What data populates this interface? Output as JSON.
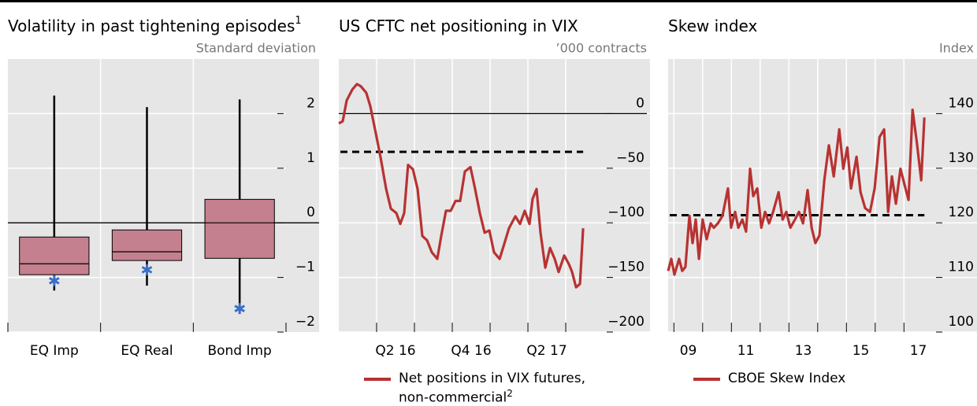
{
  "chart_data": [
    {
      "type": "box",
      "title": "Volatility in past tightening episodes",
      "title_note": "1",
      "y_label": "Standard deviation",
      "categories": [
        "EQ Imp",
        "EQ Real",
        "Bond Imp"
      ],
      "series": [
        {
          "color": "#c4808e",
          "marker_color": "#3a6fc4",
          "min": [
            -1.24,
            -1.15,
            -1.6
          ],
          "q1": [
            -0.95,
            -0.69,
            -0.65
          ],
          "median": [
            -0.75,
            -0.53,
            0
          ],
          "q3": [
            -0.26,
            -0.13,
            0.43
          ],
          "max": [
            2.33,
            2.12,
            2.26
          ],
          "marker": [
            -1.06,
            -0.86,
            -1.57
          ]
        }
      ],
      "ylim": [
        -2,
        3
      ],
      "yticks": [
        2,
        1,
        0,
        {
          "value": -1,
          "label": "−1"
        },
        {
          "value": -2,
          "label": "−2"
        }
      ],
      "grid": true,
      "zero_line": true
    },
    {
      "type": "line",
      "title": "US CFTC net positioning in VIX",
      "y_label": "’000 contracts",
      "legend_note": "2",
      "x": [
        2016.0,
        2016.026,
        2016.052,
        2016.089,
        2016.12,
        2016.146,
        2016.182,
        2016.208,
        2016.245,
        2016.276,
        2016.313,
        2016.344,
        2016.38,
        2016.406,
        2016.432,
        2016.458,
        2016.49,
        2016.521,
        2016.552,
        2016.583,
        2016.615,
        2016.651,
        2016.677,
        2016.708,
        2016.74,
        2016.771,
        2016.802,
        2016.833,
        2016.87,
        2016.901,
        2016.932,
        2016.964,
        2016.995,
        2017.026,
        2017.063,
        2017.094,
        2017.125,
        2017.167,
        2017.198,
        2017.229,
        2017.26,
        2017.281,
        2017.307,
        2017.333,
        2017.365,
        2017.396,
        2017.427,
        2017.453,
        2017.49,
        2017.521,
        2017.542,
        2017.568,
        2017.594,
        2017.615
      ],
      "series": [
        {
          "name": "Net positions in VIX futures, non-commercial",
          "color": "#b83232",
          "values": [
            -9,
            -7,
            12,
            22,
            27,
            25,
            19,
            7,
            -18,
            -40,
            -69,
            -87,
            -91,
            -101,
            -91,
            -47,
            -51,
            -69,
            -112,
            -116,
            -127,
            -133,
            -112,
            -89,
            -89,
            -80,
            -80,
            -53,
            -49,
            -69,
            -91,
            -109,
            -107,
            -127,
            -133,
            -119,
            -105,
            -94,
            -101,
            -89,
            -101,
            -78,
            -69,
            -109,
            -141,
            -123,
            -133,
            -145,
            -130,
            -138,
            -145,
            -159,
            -156,
            -105
          ]
        }
      ],
      "xlim": [
        2016.0,
        2018.057
      ],
      "xticks": [
        {
          "value": 2016.375,
          "label": "Q2 16"
        },
        {
          "value": 2016.875,
          "label": "Q4 16"
        },
        {
          "value": 2017.375,
          "label": "Q2 17"
        }
      ],
      "xgrid": [
        2016.25,
        2016.5,
        2016.75,
        2017.0,
        2017.25,
        2017.5
      ],
      "ylim": [
        -200,
        50
      ],
      "yticks": [
        0,
        {
          "value": -50,
          "label": "−50"
        },
        {
          "value": -100,
          "label": "−100"
        },
        {
          "value": -150,
          "label": "−150"
        },
        {
          "value": -200,
          "label": "−200"
        }
      ],
      "grid": true,
      "zero_line": true,
      "reference_line": -35
    },
    {
      "type": "line",
      "title": "Skew index",
      "y_label": "Index",
      "x": [
        2008.8,
        2008.91,
        2009.02,
        2009.18,
        2009.29,
        2009.4,
        2009.54,
        2009.65,
        2009.76,
        2009.87,
        2010.0,
        2010.14,
        2010.28,
        2010.39,
        2010.53,
        2010.69,
        2010.88,
        2010.99,
        2011.13,
        2011.24,
        2011.38,
        2011.51,
        2011.65,
        2011.76,
        2011.9,
        2012.04,
        2012.17,
        2012.31,
        2012.45,
        2012.64,
        2012.78,
        2012.91,
        2013.05,
        2013.21,
        2013.35,
        2013.49,
        2013.65,
        2013.79,
        2013.92,
        2014.06,
        2014.23,
        2014.39,
        2014.56,
        2014.75,
        2014.89,
        2015.03,
        2015.16,
        2015.35,
        2015.49,
        2015.65,
        2015.82,
        2015.98,
        2016.15,
        2016.31,
        2016.45,
        2016.58,
        2016.72,
        2016.88,
        2017.02,
        2017.16,
        2017.3,
        2017.44,
        2017.6,
        2017.71
      ],
      "series": [
        {
          "name": "CBOE Skew Index",
          "color": "#b83232",
          "values": [
            111.2,
            113.4,
            110.5,
            113.4,
            111.2,
            111.9,
            121.3,
            116.3,
            120.6,
            113.4,
            120.6,
            117,
            119.9,
            119.1,
            119.9,
            121.3,
            126.3,
            119.1,
            122,
            119.1,
            120.6,
            118.4,
            129.9,
            124.9,
            126.3,
            119.1,
            122,
            119.9,
            122,
            125.6,
            120.6,
            122,
            119.1,
            120.6,
            122,
            119.9,
            126,
            119.1,
            116.3,
            117.7,
            127.8,
            134.2,
            128.5,
            137.1,
            129.9,
            133.8,
            126.3,
            132.1,
            125.6,
            122.7,
            122,
            126.3,
            135.7,
            137.1,
            122,
            128.5,
            123.5,
            129.9,
            127,
            124.2,
            140.7,
            135,
            127.8,
            139.3
          ]
        }
      ],
      "xlim": [
        2008.8,
        2019.54
      ],
      "xticks": [
        {
          "value": 2009.5,
          "label": "09"
        },
        {
          "value": 2011.5,
          "label": "11"
        },
        {
          "value": 2013.5,
          "label": "13"
        },
        {
          "value": 2015.5,
          "label": "15"
        },
        {
          "value": 2017.5,
          "label": "17"
        }
      ],
      "xgrid": [
        2009,
        2010,
        2011,
        2012,
        2013,
        2014,
        2015,
        2016,
        2017
      ],
      "ylim": [
        100,
        150
      ],
      "yticks": [
        140,
        130,
        120,
        110,
        100
      ],
      "grid": true,
      "zero_line": false,
      "reference_line": 121.4
    }
  ]
}
